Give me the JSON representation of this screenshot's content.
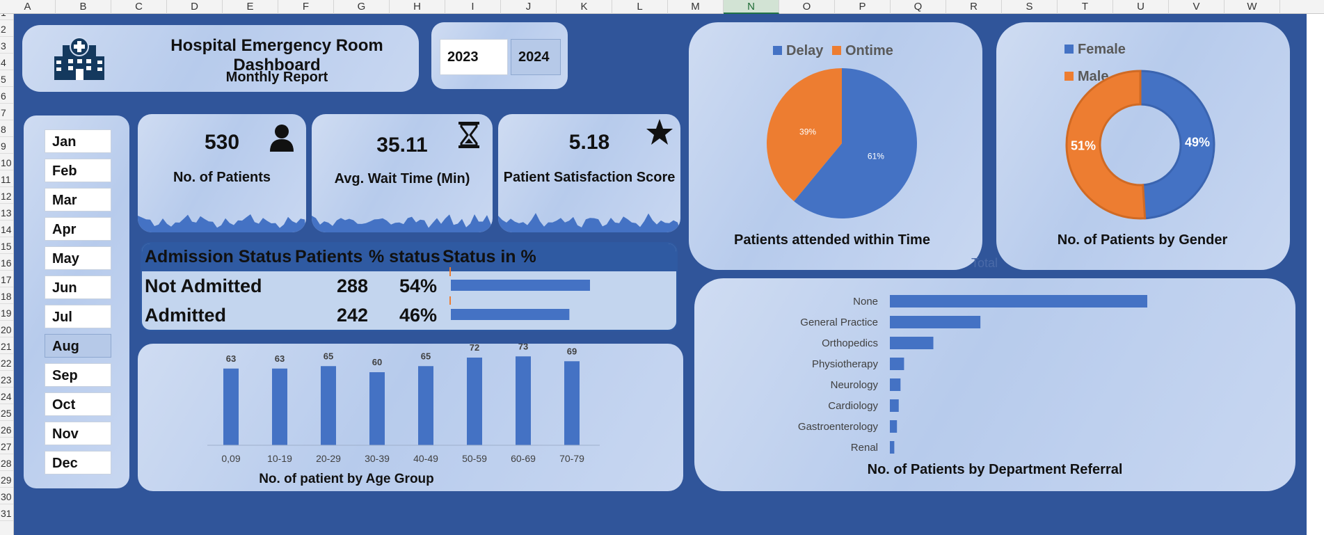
{
  "columns": [
    "A",
    "B",
    "C",
    "D",
    "E",
    "F",
    "G",
    "H",
    "I",
    "J",
    "K",
    "L",
    "M",
    "N",
    "O",
    "P",
    "Q",
    "R",
    "S",
    "T",
    "U",
    "V",
    "W"
  ],
  "selected_column": "N",
  "rows": [
    "1",
    "2",
    "3",
    "4",
    "5",
    "6",
    "7",
    "8",
    "9",
    "10",
    "11",
    "12",
    "13",
    "14",
    "15",
    "16",
    "17",
    "18",
    "19",
    "20",
    "21",
    "22",
    "23",
    "24",
    "25",
    "26",
    "27",
    "28",
    "29",
    "30",
    "31"
  ],
  "header": {
    "title": "Hospital Emergency Room Dashboard",
    "subtitle": "Monthly Report",
    "icon": "hospital-icon"
  },
  "years": [
    {
      "label": "2023",
      "selected": false
    },
    {
      "label": "2024",
      "selected": true
    }
  ],
  "months": [
    {
      "label": "Jan",
      "selected": false
    },
    {
      "label": "Feb",
      "selected": false
    },
    {
      "label": "Mar",
      "selected": false
    },
    {
      "label": "Apr",
      "selected": false
    },
    {
      "label": "May",
      "selected": false
    },
    {
      "label": "Jun",
      "selected": false
    },
    {
      "label": "Jul",
      "selected": false
    },
    {
      "label": "Aug",
      "selected": true
    },
    {
      "label": "Sep",
      "selected": false
    },
    {
      "label": "Oct",
      "selected": false
    },
    {
      "label": "Nov",
      "selected": false
    },
    {
      "label": "Dec",
      "selected": false
    }
  ],
  "kpis": [
    {
      "value": "530",
      "label": "No. of Patients",
      "icon": "person-icon"
    },
    {
      "value": "35.11",
      "label": "Avg. Wait Time (Min)",
      "icon": "hourglass-icon"
    },
    {
      "value": "5.18",
      "label": "Patient Satisfaction Score",
      "icon": "star-icon"
    }
  ],
  "admission": {
    "headers": [
      "Admission Status",
      "Patients",
      "% status",
      "Status in %"
    ],
    "rows": [
      {
        "status": "Not Admitted",
        "patients": "288",
        "pct": "54%",
        "pct_value": 54
      },
      {
        "status": "Admitted",
        "patients": "242",
        "pct": "46%",
        "pct_value": 46
      }
    ]
  },
  "stray_label": "Total",
  "colors": {
    "accent": "#4472c4",
    "orange": "#ed7d31",
    "background": "#30559a",
    "header_fill": "#2f5aa2"
  },
  "chart_data": [
    {
      "type": "pie",
      "title": "Patients attended within Time",
      "legend": "top",
      "categories": [
        "Delay",
        "Ontime"
      ],
      "values": [
        61,
        39
      ],
      "labels": [
        "61%",
        "39%"
      ],
      "colors": [
        "#4472c4",
        "#ed7d31"
      ]
    },
    {
      "type": "pie",
      "title": "No. of Patients by Gender",
      "legend": "top-left",
      "categories": [
        "Female",
        "Male"
      ],
      "values": [
        49,
        51
      ],
      "labels": [
        "49%",
        "51%"
      ],
      "colors": [
        "#4472c4",
        "#ed7d31"
      ]
    },
    {
      "type": "bar",
      "title": "No. of patient by Age Group",
      "categories": [
        "0,09",
        "10-19",
        "20-29",
        "30-39",
        "40-49",
        "50-59",
        "60-69",
        "70-79"
      ],
      "values": [
        63,
        63,
        65,
        60,
        65,
        72,
        73,
        69
      ],
      "ylim": [
        0,
        80
      ]
    },
    {
      "type": "bar",
      "orientation": "horizontal",
      "title": "No. of Patients by Department Referral",
      "categories": [
        "None",
        "General Practice",
        "Orthopedics",
        "Physiotherapy",
        "Neurology",
        "Cardiology",
        "Gastroenterology",
        "Renal"
      ],
      "values": [
        290,
        102,
        49,
        16,
        12,
        10,
        8,
        5
      ]
    }
  ]
}
